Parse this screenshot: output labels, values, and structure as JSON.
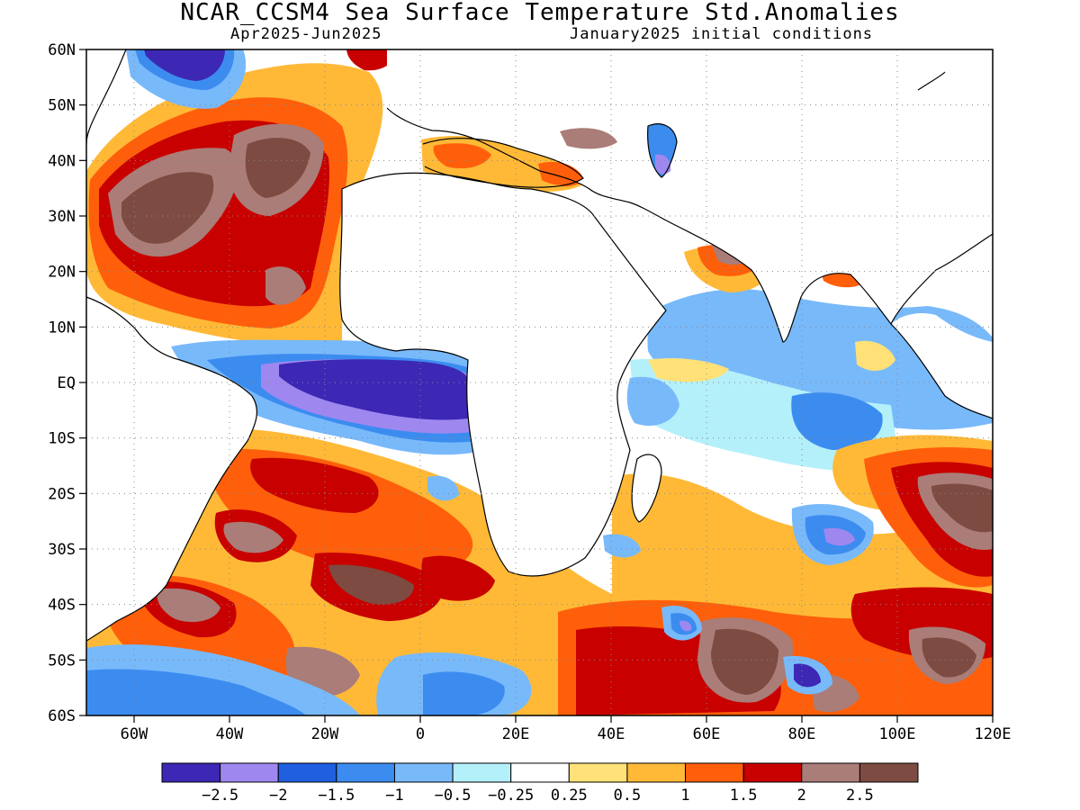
{
  "header": {
    "title": "NCAR_CCSM4 Sea Surface Temperature Std.Anomalies",
    "period": "Apr2025-Jun2025",
    "init": "January2025 initial conditions"
  },
  "map": {
    "lon_range": [
      -70,
      120
    ],
    "lat_range": [
      -60,
      60
    ],
    "lon_ticks": [
      {
        "value": -60,
        "label": "60W"
      },
      {
        "value": -40,
        "label": "40W"
      },
      {
        "value": -20,
        "label": "20W"
      },
      {
        "value": 0,
        "label": "0"
      },
      {
        "value": 20,
        "label": "20E"
      },
      {
        "value": 40,
        "label": "40E"
      },
      {
        "value": 60,
        "label": "60E"
      },
      {
        "value": 80,
        "label": "80E"
      },
      {
        "value": 100,
        "label": "100E"
      },
      {
        "value": 120,
        "label": "120E"
      }
    ],
    "lat_ticks": [
      {
        "value": 60,
        "label": "60N"
      },
      {
        "value": 50,
        "label": "50N"
      },
      {
        "value": 40,
        "label": "40N"
      },
      {
        "value": 30,
        "label": "30N"
      },
      {
        "value": 20,
        "label": "20N"
      },
      {
        "value": 10,
        "label": "10N"
      },
      {
        "value": 0,
        "label": "EQ"
      },
      {
        "value": -10,
        "label": "10S"
      },
      {
        "value": -20,
        "label": "20S"
      },
      {
        "value": -30,
        "label": "30S"
      },
      {
        "value": -40,
        "label": "40S"
      },
      {
        "value": -50,
        "label": "50S"
      },
      {
        "value": -60,
        "label": "60S"
      }
    ],
    "grid": true
  },
  "colorbar": {
    "colors": [
      "#3c28b4",
      "#9f87f0",
      "#1f5fe0",
      "#3c8cf0",
      "#78b9fa",
      "#b4f0fa",
      "#ffffff",
      "#ffe178",
      "#ffb937",
      "#ff5f0a",
      "#c80000",
      "#aa7d78",
      "#7d4b41"
    ],
    "labels": [
      "-2.5",
      "-2",
      "-1.5",
      "-1",
      "-0.5",
      "-0.25",
      "0.25",
      "0.5",
      "1",
      "1.5",
      "2",
      "2.5"
    ]
  }
}
